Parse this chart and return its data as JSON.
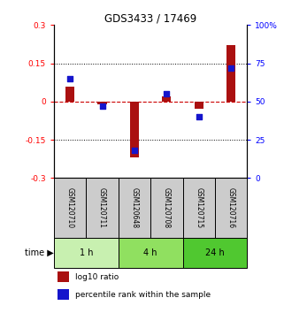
{
  "title": "GDS3433 / 17469",
  "samples": [
    "GSM120710",
    "GSM120711",
    "GSM120648",
    "GSM120708",
    "GSM120715",
    "GSM120716"
  ],
  "log10_ratio": [
    0.06,
    -0.01,
    -0.22,
    0.02,
    -0.03,
    0.22
  ],
  "percentile_rank": [
    65,
    47,
    18,
    55,
    40,
    72
  ],
  "time_groups": [
    {
      "label": "1 h",
      "span": [
        0,
        2
      ],
      "color": "#c8f0b0"
    },
    {
      "label": "4 h",
      "span": [
        2,
        4
      ],
      "color": "#90e060"
    },
    {
      "label": "24 h",
      "span": [
        4,
        6
      ],
      "color": "#50c830"
    }
  ],
  "ylim_left": [
    -0.3,
    0.3
  ],
  "ylim_right": [
    0,
    100
  ],
  "yticks_left": [
    -0.3,
    -0.15,
    0,
    0.15,
    0.3
  ],
  "yticks_right": [
    0,
    25,
    50,
    75,
    100
  ],
  "bar_color_red": "#aa1010",
  "bar_color_blue": "#1515cc",
  "hline_color": "#cc0000",
  "dotted_line_color": "#000000",
  "bg_color": "#ffffff",
  "sample_box_color": "#cccccc",
  "legend_red_label": "log10 ratio",
  "legend_blue_label": "percentile rank within the sample"
}
